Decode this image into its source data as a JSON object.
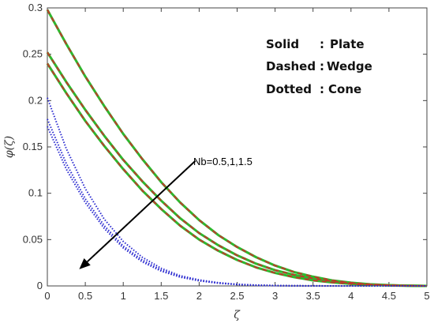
{
  "chart_data": {
    "type": "line",
    "xlabel": "ζ",
    "ylabel": "φ(ζ)",
    "xlim": [
      0,
      5
    ],
    "ylim": [
      0,
      0.3
    ],
    "xticks": [
      "0",
      "0.5",
      "1",
      "1.5",
      "2",
      "2.5",
      "3",
      "3.5",
      "4",
      "4.5",
      "5"
    ],
    "yticks": [
      "0",
      "0.05",
      "0.1",
      "0.15",
      "0.2",
      "0.25",
      "0.3"
    ],
    "grid": false,
    "legend": {
      "position": "top-right",
      "lines": [
        {
          "key": "Solid",
          "sep": ":",
          "value": "Plate"
        },
        {
          "key": "Dashed",
          "sep": ":",
          "value": "Wedge"
        },
        {
          "key": "Dotted",
          "sep": ":",
          "value": "Cone"
        }
      ]
    },
    "annotation": {
      "text": "Nb=0.5,1,1.5",
      "arrow_from": [
        1.95,
        0.135
      ],
      "arrow_to": [
        0.42,
        0.018
      ]
    },
    "x": [
      0,
      0.25,
      0.5,
      0.75,
      1,
      1.25,
      1.5,
      1.75,
      2,
      2.25,
      2.5,
      2.75,
      3,
      3.25,
      3.5,
      3.75,
      4,
      4.25,
      4.5,
      4.75,
      5
    ],
    "series": [
      {
        "style": "solid",
        "color": "#2db82d",
        "values": [
          0.298,
          0.261,
          0.226,
          0.194,
          0.164,
          0.137,
          0.112,
          0.09,
          0.071,
          0.055,
          0.042,
          0.031,
          0.022,
          0.015,
          0.01,
          0.006,
          0.0035,
          0.0018,
          0.0008,
          0.0003,
          0.0
        ]
      },
      {
        "style": "solid",
        "color": "#2db82d",
        "values": [
          0.252,
          0.22,
          0.19,
          0.162,
          0.136,
          0.113,
          0.092,
          0.073,
          0.057,
          0.044,
          0.033,
          0.024,
          0.017,
          0.012,
          0.008,
          0.005,
          0.003,
          0.0015,
          0.0007,
          0.0002,
          0.0
        ]
      },
      {
        "style": "solid",
        "color": "#2db82d",
        "values": [
          0.24,
          0.208,
          0.178,
          0.151,
          0.126,
          0.103,
          0.083,
          0.065,
          0.05,
          0.038,
          0.028,
          0.02,
          0.014,
          0.0095,
          0.006,
          0.0038,
          0.0022,
          0.0012,
          0.0005,
          0.0002,
          0.0
        ]
      },
      {
        "style": "dashed",
        "color": "#c0392b",
        "values": [
          0.298,
          0.261,
          0.226,
          0.194,
          0.164,
          0.137,
          0.112,
          0.09,
          0.071,
          0.055,
          0.042,
          0.031,
          0.022,
          0.015,
          0.01,
          0.006,
          0.0035,
          0.0018,
          0.0008,
          0.0003,
          0.0
        ]
      },
      {
        "style": "dashed",
        "color": "#c0392b",
        "values": [
          0.252,
          0.22,
          0.19,
          0.162,
          0.136,
          0.113,
          0.092,
          0.073,
          0.057,
          0.044,
          0.033,
          0.024,
          0.017,
          0.012,
          0.008,
          0.005,
          0.003,
          0.0015,
          0.0007,
          0.0002,
          0.0
        ]
      },
      {
        "style": "dashed",
        "color": "#c0392b",
        "values": [
          0.24,
          0.208,
          0.178,
          0.151,
          0.126,
          0.103,
          0.083,
          0.065,
          0.05,
          0.038,
          0.028,
          0.02,
          0.014,
          0.0095,
          0.006,
          0.0038,
          0.0022,
          0.0012,
          0.0005,
          0.0002,
          0.0
        ]
      },
      {
        "style": "dotted",
        "color": "#2b2bd0",
        "values": [
          0.203,
          0.148,
          0.105,
          0.072,
          0.048,
          0.031,
          0.019,
          0.011,
          0.0065,
          0.0035,
          0.0018,
          0.0009,
          0.0004,
          0.0002,
          0.0001,
          0.0,
          0.0,
          0.0,
          0.0,
          0.0,
          0.0
        ]
      },
      {
        "style": "dotted",
        "color": "#2b2bd0",
        "values": [
          0.18,
          0.132,
          0.094,
          0.065,
          0.043,
          0.028,
          0.017,
          0.01,
          0.006,
          0.0032,
          0.0016,
          0.0008,
          0.0004,
          0.0002,
          0.0001,
          0.0,
          0.0,
          0.0,
          0.0,
          0.0,
          0.0
        ]
      },
      {
        "style": "dotted",
        "color": "#2b2bd0",
        "values": [
          0.172,
          0.126,
          0.09,
          0.062,
          0.041,
          0.026,
          0.016,
          0.0095,
          0.0055,
          0.003,
          0.0015,
          0.0007,
          0.0003,
          0.0001,
          0.0,
          0.0,
          0.0,
          0.0,
          0.0,
          0.0,
          0.0
        ]
      }
    ]
  }
}
